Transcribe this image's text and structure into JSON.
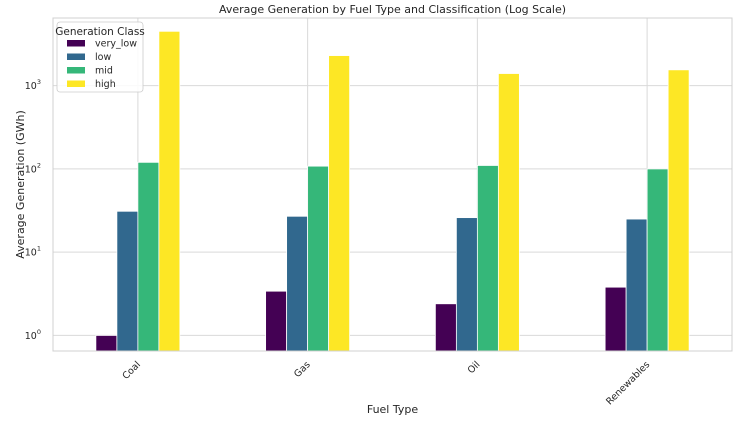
{
  "chart_data": {
    "type": "bar",
    "title": "Average Generation by Fuel Type and Classification (Log Scale)",
    "xlabel": "Fuel Type",
    "ylabel": "Average Generation (GWh)",
    "yscale": "log",
    "ylim": [
      0.65,
      6500
    ],
    "yticks": [
      {
        "value": 1,
        "base": "10",
        "exp": "0"
      },
      {
        "value": 10,
        "base": "10",
        "exp": "1"
      },
      {
        "value": 100,
        "base": "10",
        "exp": "2"
      },
      {
        "value": 1000,
        "base": "10",
        "exp": "3"
      }
    ],
    "categories": [
      "Coal",
      "Gas",
      "Oil",
      "Renewables"
    ],
    "series": [
      {
        "name": "very_low",
        "color": "#440154",
        "values": [
          1.0,
          3.4,
          2.4,
          3.8
        ]
      },
      {
        "name": "low",
        "color": "#31688e",
        "values": [
          31,
          27,
          26,
          25
        ]
      },
      {
        "name": "mid",
        "color": "#35b779",
        "values": [
          120,
          108,
          110,
          100
        ]
      },
      {
        "name": "high",
        "color": "#fde725",
        "values": [
          4500,
          2300,
          1400,
          1550
        ]
      }
    ],
    "legend": {
      "title": "Generation Class",
      "position": "top-left"
    },
    "grid": true
  }
}
